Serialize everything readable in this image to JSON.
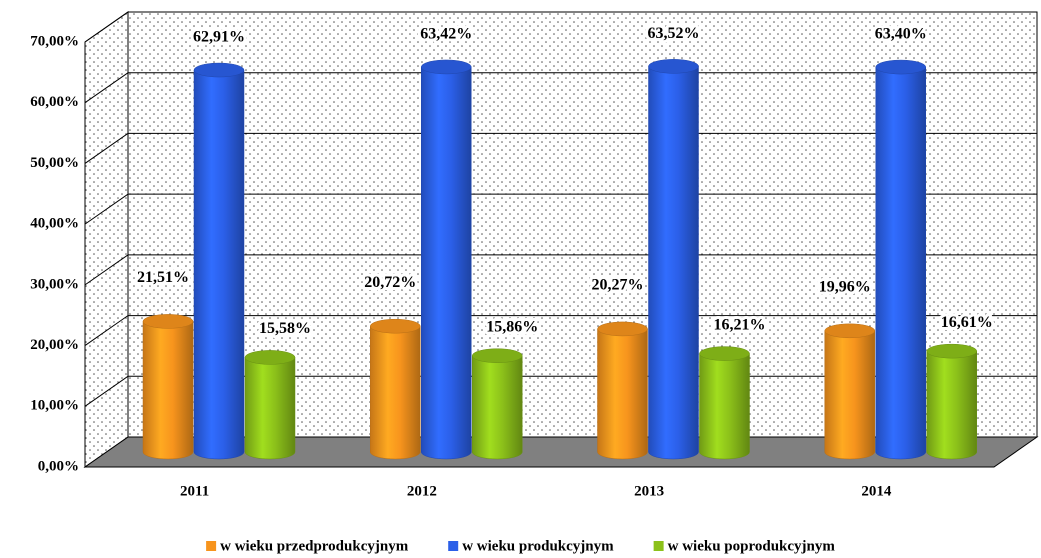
{
  "chart_data": {
    "type": "bar",
    "categories": [
      "2011",
      "2012",
      "2013",
      "2014"
    ],
    "series": [
      {
        "name": "w wieku przedprodukcyjnym",
        "color": "#f7941d",
        "values": [
          21.51,
          20.72,
          20.27,
          19.96
        ],
        "value_labels": [
          "21,51%",
          "20,72%",
          "20,27%",
          "19,96%"
        ]
      },
      {
        "name": "w wieku produkcyjnym",
        "color": "#2b5fe8",
        "values": [
          62.91,
          63.42,
          63.52,
          63.4
        ],
        "value_labels": [
          "62,91%",
          "63,42%",
          "63,52%",
          "63,40%"
        ]
      },
      {
        "name": "w wieku poprodukcyjnym",
        "color": "#8cc11a",
        "values": [
          15.58,
          15.86,
          16.21,
          16.61
        ],
        "value_labels": [
          "15,58%",
          "15,86%",
          "16,21%",
          "16,61%"
        ]
      }
    ],
    "ylim": [
      0,
      70
    ],
    "yticks": [
      {
        "value": 0,
        "label": "0,00%"
      },
      {
        "value": 10,
        "label": "10,00%"
      },
      {
        "value": 20,
        "label": "20,00%"
      },
      {
        "value": 30,
        "label": "30,00%"
      },
      {
        "value": 40,
        "label": "40,00%"
      },
      {
        "value": 50,
        "label": "50,00%"
      },
      {
        "value": 60,
        "label": "60,00%"
      },
      {
        "value": 70,
        "label": "70,00%"
      }
    ],
    "grid": true,
    "legend": "bottom"
  }
}
